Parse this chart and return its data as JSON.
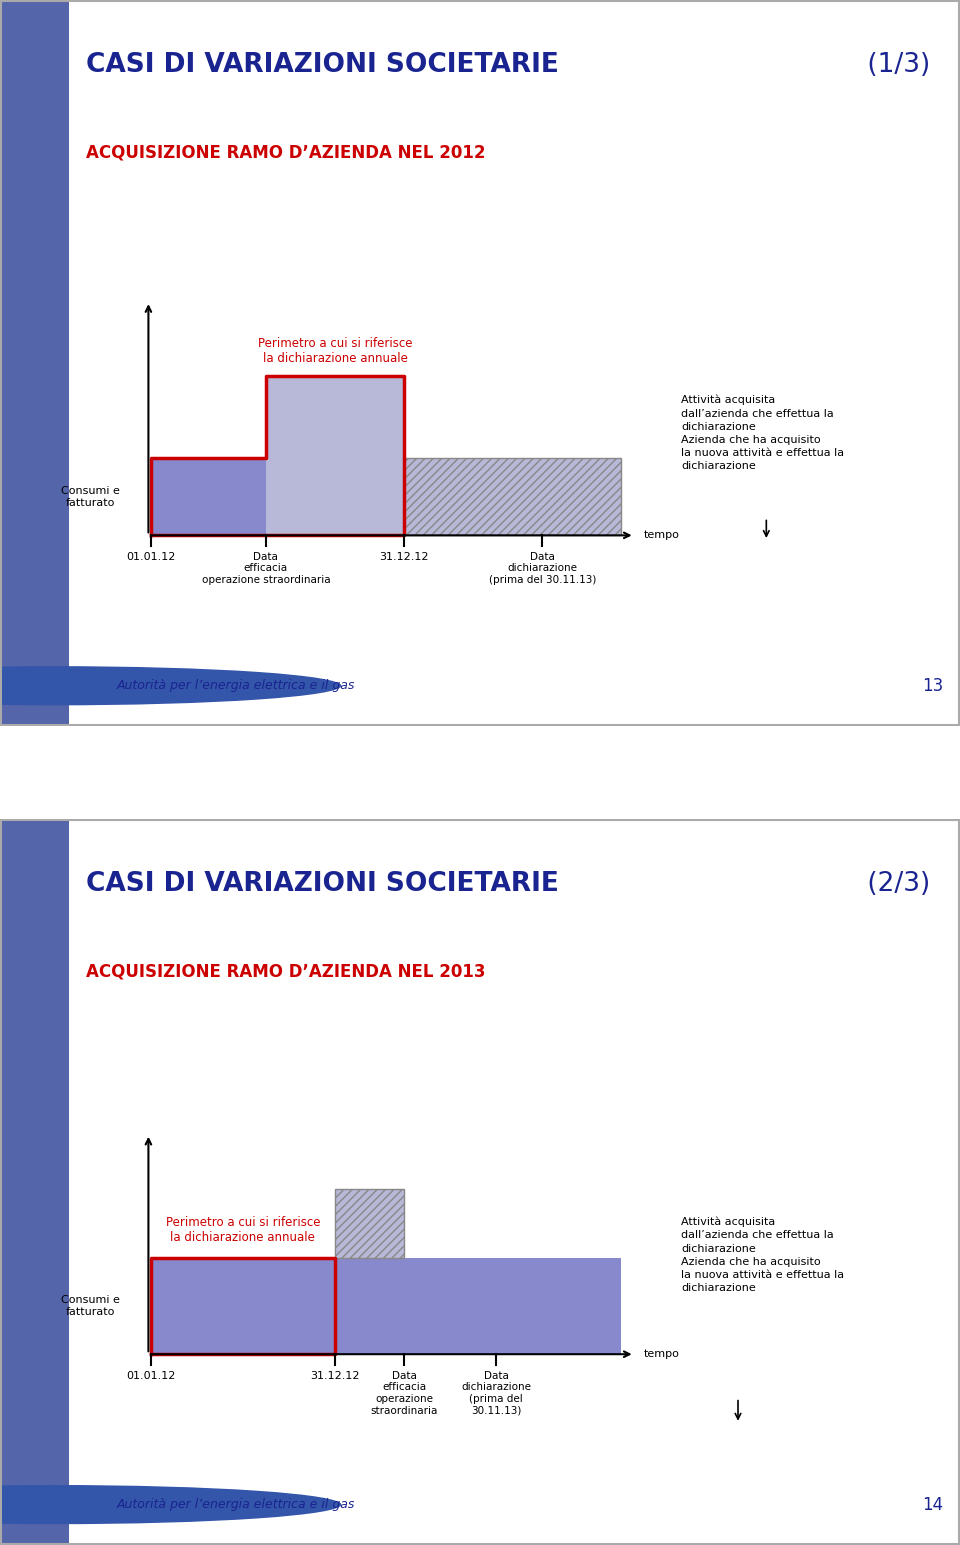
{
  "slide1": {
    "title_main": "CASI DI VARIAZIONI SOCIETARIE",
    "title_fraction": " (1/3)",
    "subtitle": "ACQUISIZIONE RAMO D’AZIENDA NEL 2012",
    "ylabel": "Consumi e\nfatturato",
    "perimetro_label": "Perimetro a cui si riferisce\nla dichiarazione annuale",
    "legend_line1": "Attività acquisita",
    "legend_line2": "dall’azienda che effettua la",
    "legend_line3": "dichiarazione",
    "legend_line4": "Azienda che ha acquisito",
    "legend_line5": "la nuova attività e effettua la",
    "legend_line6": "dichiarazione",
    "tempo_label": "tempo",
    "date1": "01.01.12",
    "date2": "Data\nefficacia\noperazione straordinaria",
    "date3": "31.12.12",
    "date4": "Data\ndichiarazione\n(prima del 30.11.13)",
    "page_num": "13",
    "footer_text": "Autorità per l’energia elettrica e il gas"
  },
  "slide2": {
    "title_main": "CASI DI VARIAZIONI SOCIETARIE",
    "title_fraction": " (2/3)",
    "subtitle": "ACQUISIZIONE RAMO D’AZIENDA NEL 2013",
    "ylabel": "Consumi e\nfatturato",
    "perimetro_label": "Perimetro a cui si riferisce\nla dichiarazione annuale",
    "legend_line1": "Attività acquisita",
    "legend_line2": "dall’azienda che effettua la",
    "legend_line3": "dichiarazione",
    "legend_line4": "Azienda che ha acquisito",
    "legend_line5": "la nuova attività e effettua la",
    "legend_line6": "dichiarazione",
    "tempo_label": "tempo",
    "date1": "01.01.12",
    "date2": "31.12.12",
    "date3": "Data\nefficacia\noperazione\nstraordinaria",
    "date4": "Data\ndichiarazione\n(prima del\n30.11.13)",
    "page_num": "14",
    "footer_text": "Autorità per l’energia elettrica e il gas"
  },
  "colors": {
    "slide_bg": "#C8D8EE",
    "left_strip": "#5565AA",
    "title_blue": "#1A2490",
    "subtitle_red": "#CC0000",
    "perimetro_red": "#CC0000",
    "rect_fill": "#8888CC",
    "rect_border_red": "#CC0000",
    "hatched_fill": "#B8B8D8",
    "hatched_border": "#888888",
    "footer_blue": "#1A2490",
    "white_gap": "#FFFFFF"
  }
}
